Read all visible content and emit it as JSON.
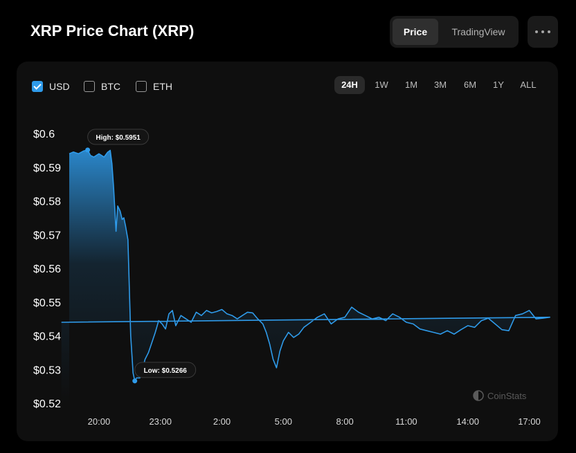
{
  "header": {
    "title": "XRP Price Chart (XRP)",
    "view_options": [
      "Price",
      "TradingView"
    ],
    "active_view": "Price"
  },
  "currency_toggles": [
    {
      "label": "USD",
      "checked": true
    },
    {
      "label": "BTC",
      "checked": false
    },
    {
      "label": "ETH",
      "checked": false
    }
  ],
  "time_ranges": [
    "24H",
    "1W",
    "1M",
    "3M",
    "6M",
    "1Y",
    "ALL"
  ],
  "active_range": "24H",
  "watermark": "CoinStats",
  "colors": {
    "line": "#2f9bea",
    "accent": "#2f9bea",
    "background": "#000000",
    "panel": "#0f0f0f"
  },
  "chart_data": {
    "type": "area",
    "title": "XRP Price Chart (XRP)",
    "xlabel": "",
    "ylabel": "",
    "x_unit": "hour of day (times after 24:00 wrap to next day)",
    "x_range": [
      18.55,
      18.2
    ],
    "ylim": [
      0.52,
      0.6
    ],
    "y_ticks": [
      0.6,
      0.59,
      0.58,
      0.57,
      0.56,
      0.55,
      0.54,
      0.53,
      0.52
    ],
    "y_tick_labels": [
      "$0.6",
      "$0.59",
      "$0.58",
      "$0.57",
      "$0.56",
      "$0.55",
      "$0.54",
      "$0.53",
      "$0.52"
    ],
    "x_ticks": [
      20,
      23,
      2,
      5,
      8,
      11,
      14,
      17
    ],
    "x_tick_labels": [
      "20:00",
      "23:00",
      "2:00",
      "5:00",
      "8:00",
      "11:00",
      "14:00",
      "17:00"
    ],
    "grid": false,
    "legend": "none",
    "series": [
      {
        "x": [
          "18:33",
          "18:45",
          "19:00",
          "19:15",
          "19:27",
          "19:35",
          "19:45",
          "20:00",
          "20:15",
          "20:25",
          "20:33",
          "20:38",
          "20:43",
          "20:50",
          "20:55",
          "21:02",
          "21:08",
          "21:13",
          "21:18",
          "21:25",
          "21:33",
          "21:40",
          "21:45",
          "21:50",
          "22:00",
          "22:05",
          "22:10",
          "22:15",
          "22:25",
          "22:35",
          "22:45",
          "22:55",
          "23:05",
          "23:15",
          "23:25",
          "23:35",
          "23:45",
          "0:00",
          "0:15",
          "0:30",
          "0:45",
          "1:00",
          "1:15",
          "1:30",
          "1:45",
          "2:00",
          "2:15",
          "2:30",
          "2:45",
          "3:00",
          "3:15",
          "3:30",
          "3:45",
          "4:00",
          "4:10",
          "4:20",
          "4:30",
          "4:40",
          "4:50",
          "5:00",
          "5:15",
          "5:30",
          "5:45",
          "6:00",
          "6:20",
          "6:40",
          "7:00",
          "7:20",
          "7:40",
          "8:00",
          "8:20",
          "8:40",
          "9:00",
          "9:20",
          "9:40",
          "10:00",
          "10:20",
          "10:40",
          "11:00",
          "11:20",
          "11:40",
          "12:00",
          "12:20",
          "12:40",
          "13:00",
          "13:20",
          "13:40",
          "14:00",
          "14:20",
          "14:40",
          "15:00",
          "15:20",
          "15:40",
          "16:00",
          "16:20",
          "16:40",
          "17:00",
          "17:20",
          "17:40",
          "18:00",
          "18:10"
        ],
        "y": [
          0.594,
          0.5945,
          0.594,
          0.5948,
          0.5951,
          0.5935,
          0.593,
          0.594,
          0.593,
          0.5944,
          0.595,
          0.591,
          0.584,
          0.571,
          0.5785,
          0.577,
          0.5745,
          0.575,
          0.5725,
          0.5685,
          0.54,
          0.529,
          0.5266,
          0.5275,
          0.5275,
          0.529,
          0.531,
          0.533,
          0.535,
          0.538,
          0.541,
          0.5445,
          0.5435,
          0.542,
          0.5465,
          0.5475,
          0.543,
          0.546,
          0.545,
          0.544,
          0.547,
          0.546,
          0.5475,
          0.5468,
          0.5472,
          0.5478,
          0.5465,
          0.546,
          0.545,
          0.546,
          0.547,
          0.5468,
          0.545,
          0.5435,
          0.541,
          0.5375,
          0.533,
          0.5305,
          0.5355,
          0.5385,
          0.541,
          0.5395,
          0.5405,
          0.5425,
          0.544,
          0.5455,
          0.5465,
          0.5435,
          0.545,
          0.5455,
          0.5485,
          0.547,
          0.546,
          0.545,
          0.5455,
          0.5445,
          0.5465,
          0.5455,
          0.544,
          0.5435,
          0.542,
          0.5415,
          0.541,
          0.5405,
          0.5415,
          0.5405,
          0.5418,
          0.543,
          0.5425,
          0.5445,
          0.5452,
          0.5435,
          0.5418,
          0.5415,
          0.546,
          0.5465,
          0.5475,
          0.545,
          0.5452,
          0.5455,
          0.544
        ]
      }
    ],
    "annotations": [
      {
        "label": "High: $0.5951",
        "x": "19:27",
        "y": 0.5951
      },
      {
        "label": "Low: $0.5266",
        "x": "21:45",
        "y": 0.5266
      }
    ]
  }
}
